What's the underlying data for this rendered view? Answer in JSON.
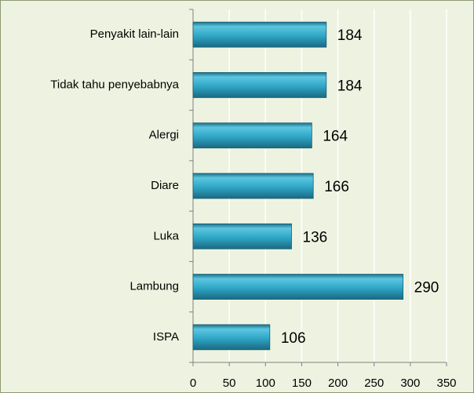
{
  "chart_data": {
    "type": "bar",
    "orientation": "horizontal",
    "categories": [
      "Penyakit lain-lain",
      "Tidak tahu penyebabnya",
      "Alergi",
      "Diare",
      "Luka",
      "Lambung",
      "ISPA"
    ],
    "values": [
      184,
      184,
      164,
      166,
      136,
      290,
      106
    ],
    "color": "#2fa6c6",
    "xlim": [
      0,
      350
    ],
    "xticks": [
      0,
      50,
      100,
      150,
      200,
      250,
      300,
      350
    ],
    "grid": true
  }
}
